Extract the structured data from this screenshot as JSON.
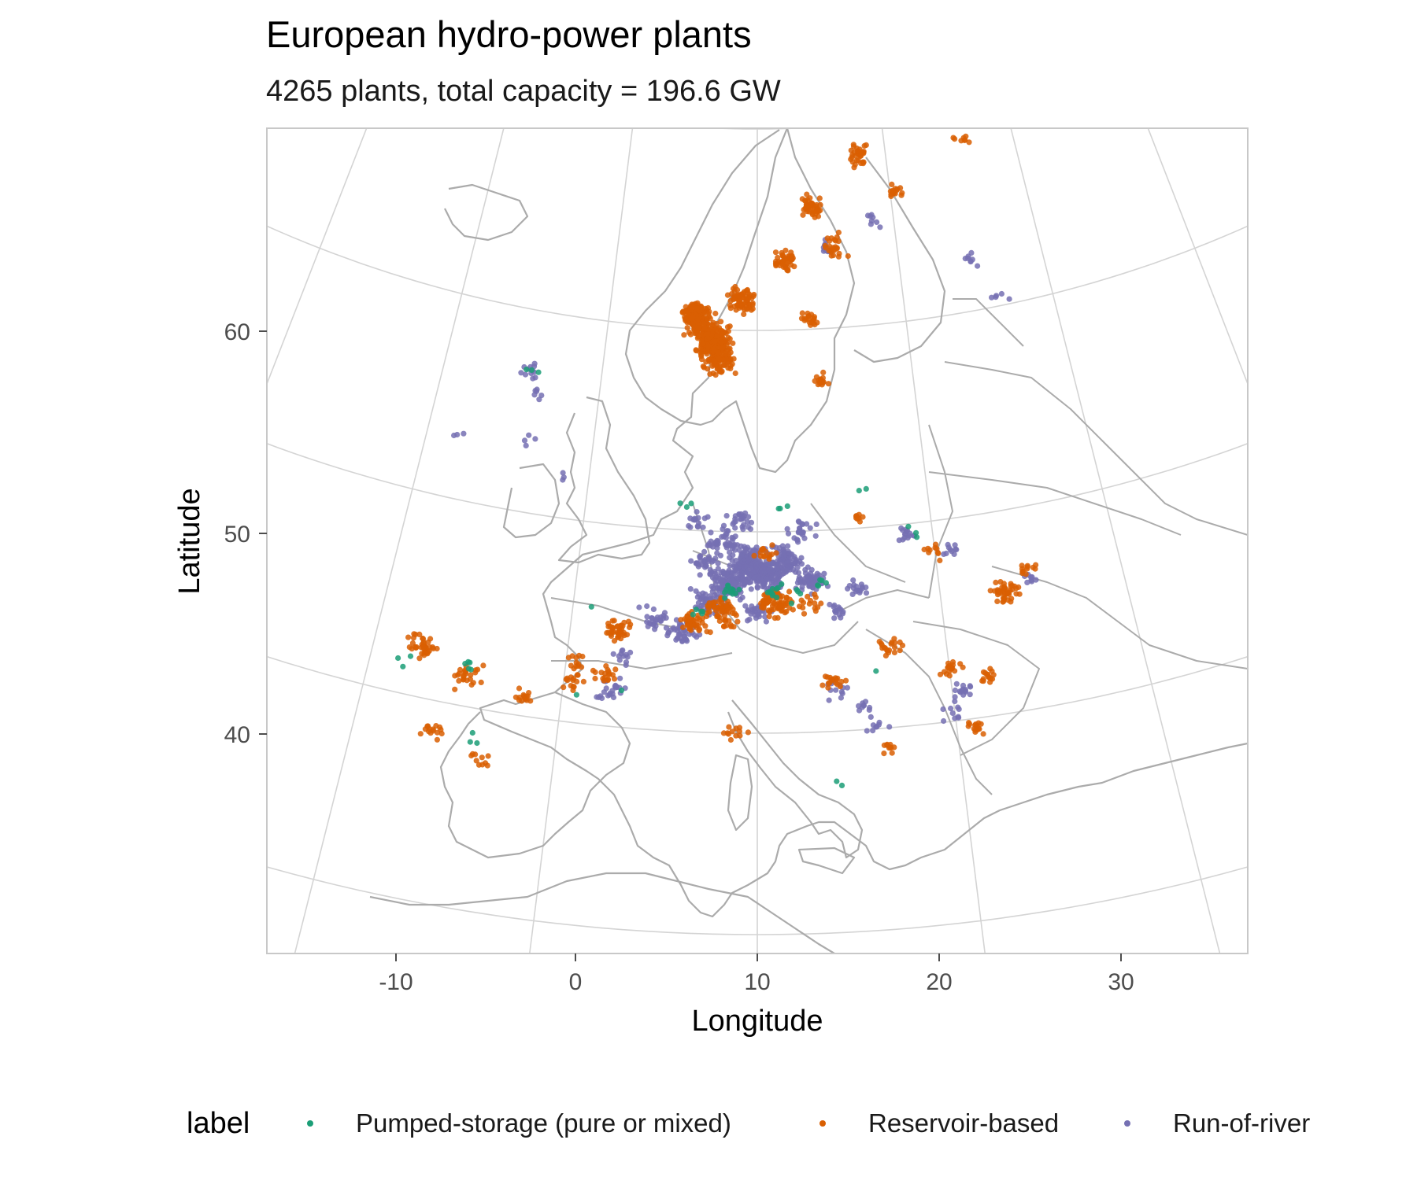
{
  "title": "European hydro-power plants",
  "subtitle": "4265 plants, total capacity = 196.6 GW",
  "axes": {
    "x": {
      "label": "Longitude",
      "ticks": [
        "-10",
        "0",
        "10",
        "20",
        "30"
      ]
    },
    "y": {
      "label": "Latitude",
      "ticks": [
        "40",
        "50",
        "60"
      ]
    }
  },
  "legend": {
    "title": "label",
    "position": "bottom",
    "items": [
      {
        "label": "Pumped-storage (pure or mixed)",
        "color": "#1b9e77"
      },
      {
        "label": "Reservoir-based",
        "color": "#d95f02"
      },
      {
        "label": "Run-of-river",
        "color": "#7570b3"
      }
    ]
  },
  "map": {
    "region": "Europe",
    "basemap": "country outlines, light grey",
    "graticule": true,
    "projection": "conic",
    "xlim": [
      -17,
      37
    ],
    "ylim": [
      30,
      70
    ]
  },
  "chart_data": {
    "type": "scatter",
    "title": "European hydro-power plants",
    "subtitle": "4265 plants, total capacity = 196.6 GW",
    "xlabel": "Longitude",
    "ylabel": "Latitude",
    "x_ticks": [
      -10,
      0,
      10,
      20,
      30
    ],
    "y_ticks": [
      40,
      50,
      60
    ],
    "legend_position": "bottom",
    "series": [
      {
        "name": "Pumped-storage (pure or mixed)",
        "color": "#1b9e77",
        "clusters": [
          [
            8.5,
            47.0,
            12
          ],
          [
            11.0,
            47.0,
            10
          ],
          [
            7.0,
            46.0,
            5
          ],
          [
            13.5,
            47.3,
            5
          ],
          [
            12.0,
            46.8,
            4
          ],
          [
            -5.0,
            42.0,
            5
          ],
          [
            -4.0,
            38.5,
            3
          ],
          [
            -8.0,
            41.5,
            3
          ],
          [
            6.0,
            51.3,
            3
          ],
          [
            11.5,
            51.0,
            3
          ],
          [
            16.0,
            52.0,
            2
          ],
          [
            19.0,
            49.5,
            3
          ],
          [
            -4.5,
            57.0,
            3
          ],
          [
            14.0,
            37.5,
            2
          ],
          [
            1.0,
            45.8,
            1
          ],
          [
            16.5,
            43.2,
            1
          ],
          [
            3.0,
            42.0,
            1
          ],
          [
            1.0,
            41.5,
            1
          ]
        ]
      },
      {
        "name": "Reservoir-based",
        "color": "#d95f02",
        "clusters": [
          [
            7.0,
            59.5,
            260
          ],
          [
            6.0,
            60.5,
            160
          ],
          [
            7.5,
            58.5,
            90
          ],
          [
            9.0,
            61.5,
            70
          ],
          [
            12.0,
            63.5,
            45
          ],
          [
            14.0,
            66.0,
            45
          ],
          [
            18.0,
            68.5,
            35
          ],
          [
            15.5,
            64.0,
            25
          ],
          [
            13.5,
            60.5,
            20
          ],
          [
            14.0,
            57.5,
            15
          ],
          [
            20.5,
            66.5,
            15
          ],
          [
            26.0,
            68.5,
            8
          ],
          [
            11.0,
            46.5,
            75
          ],
          [
            8.0,
            46.2,
            45
          ],
          [
            6.5,
            45.5,
            45
          ],
          [
            13.0,
            46.3,
            15
          ],
          [
            2.5,
            44.8,
            40
          ],
          [
            2.0,
            42.6,
            18
          ],
          [
            0.5,
            43.0,
            12
          ],
          [
            -7.5,
            42.5,
            40
          ],
          [
            -5.0,
            41.5,
            25
          ],
          [
            -2.0,
            41.0,
            15
          ],
          [
            -6.0,
            38.5,
            15
          ],
          [
            0.5,
            42.0,
            15
          ],
          [
            -3.5,
            37.5,
            10
          ],
          [
            23.5,
            46.0,
            45
          ],
          [
            25.0,
            47.0,
            12
          ],
          [
            17.0,
            44.0,
            20
          ],
          [
            20.0,
            42.5,
            18
          ],
          [
            22.0,
            42.0,
            15
          ],
          [
            14.0,
            42.5,
            18
          ],
          [
            9.0,
            40.0,
            12
          ],
          [
            8.5,
            45.5,
            12
          ],
          [
            21.0,
            39.5,
            15
          ],
          [
            20.0,
            48.5,
            10
          ],
          [
            16.0,
            50.5,
            8
          ],
          [
            16.5,
            39.0,
            10
          ],
          [
            10.5,
            49.0,
            15
          ]
        ]
      },
      {
        "name": "Run-of-river",
        "color": "#7570b3",
        "clusters": [
          [
            9.5,
            48.5,
            160
          ],
          [
            10.5,
            47.8,
            140
          ],
          [
            8.5,
            47.5,
            120
          ],
          [
            11.5,
            48.5,
            90
          ],
          [
            7.5,
            46.5,
            70
          ],
          [
            13.0,
            47.5,
            60
          ],
          [
            8.0,
            49.5,
            40
          ],
          [
            6.0,
            45.0,
            40
          ],
          [
            7.0,
            48.5,
            30
          ],
          [
            9.0,
            50.5,
            25
          ],
          [
            12.5,
            50.0,
            25
          ],
          [
            10.0,
            46.0,
            30
          ],
          [
            4.5,
            45.5,
            25
          ],
          [
            3.0,
            43.5,
            12
          ],
          [
            2.5,
            41.8,
            25
          ],
          [
            15.5,
            47.0,
            18
          ],
          [
            14.5,
            46.0,
            15
          ],
          [
            18.5,
            49.5,
            15
          ],
          [
            21.0,
            48.5,
            10
          ],
          [
            14.0,
            42.0,
            12
          ],
          [
            15.5,
            41.0,
            10
          ],
          [
            16.0,
            40.0,
            8
          ],
          [
            20.5,
            41.5,
            15
          ],
          [
            20.0,
            40.5,
            10
          ],
          [
            25.0,
            46.5,
            8
          ],
          [
            15.0,
            64.0,
            10
          ],
          [
            18.5,
            65.0,
            8
          ],
          [
            25.0,
            62.5,
            8
          ],
          [
            26.5,
            60.5,
            5
          ],
          [
            -4.5,
            57.0,
            12
          ],
          [
            -4.0,
            56.0,
            6
          ],
          [
            -4.0,
            53.5,
            4
          ],
          [
            -8.0,
            53.0,
            3
          ],
          [
            -1.5,
            52.0,
            3
          ],
          [
            6.5,
            50.5,
            15
          ]
        ]
      }
    ]
  }
}
